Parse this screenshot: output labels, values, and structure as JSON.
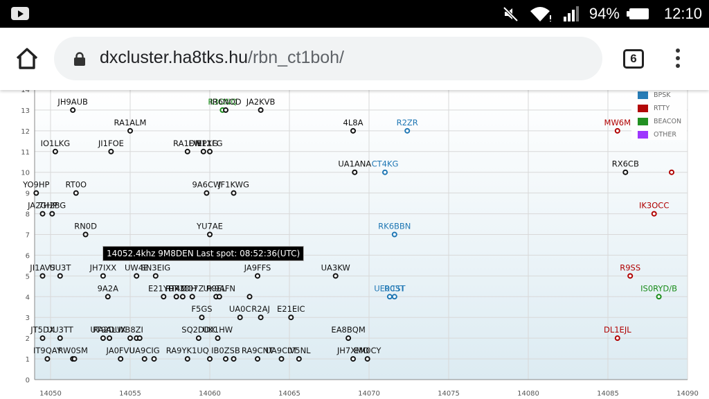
{
  "status_bar": {
    "battery_percent": "94%",
    "time": "12:10"
  },
  "browser": {
    "url_host": "dxcluster.ha8tks.hu",
    "url_path": "/rbn_ct1boh/",
    "tab_count": "6"
  },
  "tooltip": "14052.4khz 9M8DEN Last spot: 08:52:36(UTC)",
  "colors": {
    "BPSK": "#1f77b4",
    "RTTY": "#b00000",
    "BEACON": "#1a8c1a",
    "OTHER": "#9b30ff",
    "default": "#111111"
  },
  "legend": [
    {
      "label": "BPSK",
      "color": "#1f77b4"
    },
    {
      "label": "RTTY",
      "color": "#b00000"
    },
    {
      "label": "BEACON",
      "color": "#1a8c1a"
    },
    {
      "label": "OTHER",
      "color": "#9b30ff"
    }
  ],
  "chart_data": {
    "type": "scatter",
    "x_ticks": [
      14050,
      14055,
      14060,
      14065,
      14070,
      14075,
      14080,
      14085,
      14090
    ],
    "y_ticks": [
      0,
      1,
      2,
      3,
      4,
      5,
      6,
      7,
      8,
      9,
      10,
      11,
      12,
      13,
      14
    ],
    "xlim": [
      14049,
      14090
    ],
    "ylim": [
      0,
      14
    ],
    "grid": true,
    "legend_position": "top-right",
    "points": [
      {
        "label": "JH9AUB",
        "x": 14051.4,
        "y": 13,
        "mode": "default"
      },
      {
        "label": "JA2KVB",
        "x": 14063.2,
        "y": 13,
        "mode": "default"
      },
      {
        "label": "R3ONQ",
        "x": 14060.8,
        "y": 13,
        "mode": "BEACON"
      },
      {
        "label": "IR6NOD",
        "x": 14061.0,
        "y": 13,
        "mode": "default"
      },
      {
        "label": "RA1ALM",
        "x": 14055.0,
        "y": 12,
        "mode": "default"
      },
      {
        "label": "4L8A",
        "x": 14069.0,
        "y": 12,
        "mode": "default"
      },
      {
        "label": "R2ZR",
        "x": 14072.4,
        "y": 12,
        "mode": "BPSK"
      },
      {
        "label": "MW6M",
        "x": 14085.6,
        "y": 12,
        "mode": "RTTY"
      },
      {
        "label": "IO1LKG",
        "x": 14050.3,
        "y": 11,
        "mode": "default"
      },
      {
        "label": "JI1FOE",
        "x": 14053.8,
        "y": 11,
        "mode": "default"
      },
      {
        "label": "RA1DM",
        "x": 14058.6,
        "y": 11,
        "mode": "default"
      },
      {
        "label": "EW1XG",
        "x": 14059.6,
        "y": 11,
        "mode": "default"
      },
      {
        "label": "EP1FG",
        "x": 14060.0,
        "y": 11,
        "mode": "default"
      },
      {
        "label": "UA1ANA",
        "x": 14069.1,
        "y": 10,
        "mode": "default"
      },
      {
        "label": "CT4KG",
        "x": 14071.0,
        "y": 10,
        "mode": "BPSK"
      },
      {
        "label": "RX6CB",
        "x": 14086.1,
        "y": 10,
        "mode": "default"
      },
      {
        "label": "",
        "x": 14089.0,
        "y": 10,
        "mode": "RTTY"
      },
      {
        "label": "YO9HP",
        "x": 14049.1,
        "y": 9,
        "mode": "default"
      },
      {
        "label": "RT0O",
        "x": 14051.6,
        "y": 9,
        "mode": "default"
      },
      {
        "label": "9A6CW",
        "x": 14059.8,
        "y": 9,
        "mode": "default"
      },
      {
        "label": "JF1KWG",
        "x": 14061.5,
        "y": 9,
        "mode": "default"
      },
      {
        "label": "JA2GHP",
        "x": 14049.5,
        "y": 8,
        "mode": "default"
      },
      {
        "label": "7H2BG",
        "x": 14050.1,
        "y": 8,
        "mode": "default"
      },
      {
        "label": "IK3OCC",
        "x": 14087.9,
        "y": 8,
        "mode": "RTTY"
      },
      {
        "label": "RN0D",
        "x": 14052.2,
        "y": 7,
        "mode": "default"
      },
      {
        "label": "YU7AE",
        "x": 14060.0,
        "y": 7,
        "mode": "default"
      },
      {
        "label": "RK6BBN",
        "x": 14071.6,
        "y": 7,
        "mode": "BPSK"
      },
      {
        "label": "JI1AVS",
        "x": 14049.5,
        "y": 5,
        "mode": "default"
      },
      {
        "label": "UU3T",
        "x": 14050.6,
        "y": 5,
        "mode": "default"
      },
      {
        "label": "JH7IXX",
        "x": 14053.3,
        "y": 5,
        "mode": "default"
      },
      {
        "label": "UW4E",
        "x": 14055.4,
        "y": 5,
        "mode": "default"
      },
      {
        "label": "SN3EIG",
        "x": 14056.6,
        "y": 5,
        "mode": "default"
      },
      {
        "label": "JA9FFS",
        "x": 14063.0,
        "y": 5,
        "mode": "default"
      },
      {
        "label": "UA3KW",
        "x": 14067.9,
        "y": 5,
        "mode": "default"
      },
      {
        "label": "R9SS",
        "x": 14086.4,
        "y": 5,
        "mode": "RTTY"
      },
      {
        "label": "9A2A",
        "x": 14053.6,
        "y": 4,
        "mode": "default"
      },
      {
        "label": "E21YDP",
        "x": 14057.1,
        "y": 4,
        "mode": "default"
      },
      {
        "label": "RT4M",
        "x": 14057.9,
        "y": 4,
        "mode": "default"
      },
      {
        "label": "RK3DH",
        "x": 14058.3,
        "y": 4,
        "mode": "default"
      },
      {
        "label": "OO7Z",
        "x": 14058.9,
        "y": 4,
        "mode": "default"
      },
      {
        "label": "R9EL",
        "x": 14060.4,
        "y": 4,
        "mode": "default"
      },
      {
        "label": "UK9AFN",
        "x": 14060.6,
        "y": 4,
        "mode": "default"
      },
      {
        "label": "",
        "x": 14062.5,
        "y": 4,
        "mode": "default"
      },
      {
        "label": "UE0CST",
        "x": 14071.3,
        "y": 4,
        "mode": "BPSK"
      },
      {
        "label": "R03T",
        "x": 14071.6,
        "y": 4,
        "mode": "BPSK"
      },
      {
        "label": "IS0RYD/B",
        "x": 14088.2,
        "y": 4,
        "mode": "BEACON"
      },
      {
        "label": "F5GS",
        "x": 14059.5,
        "y": 3,
        "mode": "default"
      },
      {
        "label": "UA0C",
        "x": 14061.9,
        "y": 3,
        "mode": "default"
      },
      {
        "label": "R2AJ",
        "x": 14063.2,
        "y": 3,
        "mode": "default"
      },
      {
        "label": "E21EIC",
        "x": 14065.1,
        "y": 3,
        "mode": "default"
      },
      {
        "label": "JT5DX",
        "x": 14049.5,
        "y": 2,
        "mode": "default"
      },
      {
        "label": "UU3TT",
        "x": 14050.6,
        "y": 2,
        "mode": "default"
      },
      {
        "label": "UT9AL",
        "x": 14053.3,
        "y": 2,
        "mode": "default"
      },
      {
        "label": "RA2DUX",
        "x": 14053.7,
        "y": 2,
        "mode": "default"
      },
      {
        "label": "WB8ZI",
        "x": 14055.0,
        "y": 2,
        "mode": "default"
      },
      {
        "label": "",
        "x": 14055.4,
        "y": 2,
        "mode": "default"
      },
      {
        "label": "",
        "x": 14055.6,
        "y": 2,
        "mode": "default"
      },
      {
        "label": "SQ2DDX",
        "x": 14059.3,
        "y": 2,
        "mode": "default"
      },
      {
        "label": "UK1HW",
        "x": 14060.5,
        "y": 2,
        "mode": "default"
      },
      {
        "label": "EA8BQM",
        "x": 14068.7,
        "y": 2,
        "mode": "default"
      },
      {
        "label": "DL1EJL",
        "x": 14085.6,
        "y": 2,
        "mode": "RTTY"
      },
      {
        "label": "IT9QAY",
        "x": 14049.8,
        "y": 1,
        "mode": "default"
      },
      {
        "label": "RW0SM",
        "x": 14051.4,
        "y": 1,
        "mode": "default"
      },
      {
        "label": "",
        "x": 14051.5,
        "y": 1,
        "mode": "default"
      },
      {
        "label": "JA0FVU",
        "x": 14054.4,
        "y": 1,
        "mode": "default"
      },
      {
        "label": "UA9CIG",
        "x": 14055.9,
        "y": 1,
        "mode": "default"
      },
      {
        "label": "",
        "x": 14056.5,
        "y": 1,
        "mode": "default"
      },
      {
        "label": "RA9YK1UQ",
        "x": 14058.6,
        "y": 1,
        "mode": "default"
      },
      {
        "label": "",
        "x": 14060.0,
        "y": 1,
        "mode": "default"
      },
      {
        "label": "IB0ZSB",
        "x": 14061.0,
        "y": 1,
        "mode": "default"
      },
      {
        "label": "",
        "x": 14061.5,
        "y": 1,
        "mode": "default"
      },
      {
        "label": "RA9CNT",
        "x": 14063.0,
        "y": 1,
        "mode": "default"
      },
      {
        "label": "UA9C0T",
        "x": 14064.5,
        "y": 1,
        "mode": "default"
      },
      {
        "label": "IV5NL",
        "x": 14065.6,
        "y": 1,
        "mode": "default"
      },
      {
        "label": "JH7XMO",
        "x": 14069.0,
        "y": 1,
        "mode": "default"
      },
      {
        "label": "EM0CY",
        "x": 14069.9,
        "y": 1,
        "mode": "default"
      }
    ]
  }
}
